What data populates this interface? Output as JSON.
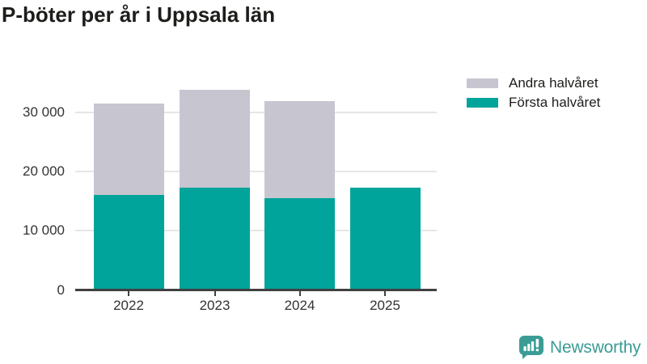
{
  "title": "P-böter per år i Uppsala län",
  "legend": {
    "items": [
      {
        "label": "Andra halvåret",
        "color": "#c7c6d0"
      },
      {
        "label": "Första halvåret",
        "color": "#00a49a"
      }
    ]
  },
  "colors": {
    "grid": "#e6e6e6",
    "axis": "#404040",
    "axis_text": "#333333",
    "title_text": "#1d1d1b"
  },
  "chart_data": {
    "type": "bar",
    "stacked": true,
    "title": "P-böter per år i Uppsala län",
    "categories": [
      "2022",
      "2023",
      "2024",
      "2025"
    ],
    "series": [
      {
        "name": "Första halvåret",
        "slug": "forsta-halvaret",
        "color": "#00a49a",
        "values": [
          16000,
          17200,
          15500,
          17300
        ]
      },
      {
        "name": "Andra halvåret",
        "slug": "andra-halvaret",
        "color": "#c7c6d0",
        "values": [
          15400,
          16500,
          16300,
          null
        ]
      }
    ],
    "totals": [
      31400,
      33700,
      31800,
      17300
    ],
    "xlabel": "",
    "ylabel": "",
    "ylim": [
      0,
      34000
    ],
    "yticks": [
      0,
      10000,
      20000,
      30000
    ],
    "ytick_labels": [
      "0",
      "10 000",
      "20 000",
      "30 000"
    ],
    "grid": true,
    "legend_position": "top-right"
  },
  "branding": {
    "logo_text": "Newsworthy",
    "color": "#3b9c95"
  }
}
